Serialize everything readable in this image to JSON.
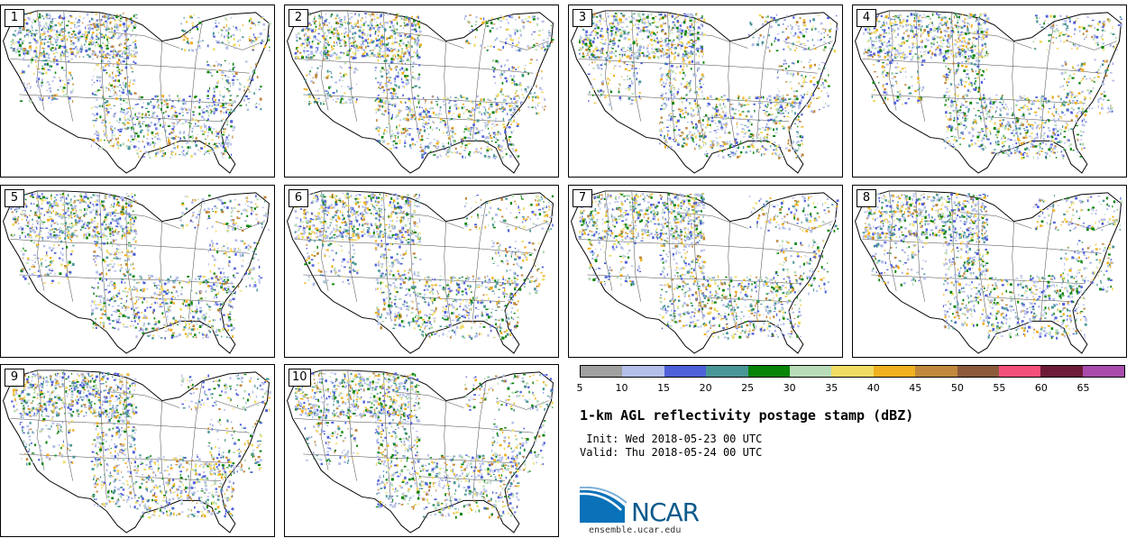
{
  "panels": [
    {
      "label": "1"
    },
    {
      "label": "2"
    },
    {
      "label": "3"
    },
    {
      "label": "4"
    },
    {
      "label": "5"
    },
    {
      "label": "6"
    },
    {
      "label": "7"
    },
    {
      "label": "8"
    },
    {
      "label": "9"
    },
    {
      "label": "10"
    }
  ],
  "colorbar": {
    "colors": [
      "#a0a0a0",
      "#b4bee8",
      "#5060d8",
      "#4a9696",
      "#088408",
      "#b8dcb8",
      "#f0dc64",
      "#f0b020",
      "#c0883c",
      "#8c5a3c",
      "#f4507c",
      "#6c1c38",
      "#a84cac"
    ],
    "ticks": [
      "5",
      "10",
      "15",
      "20",
      "25",
      "30",
      "35",
      "40",
      "45",
      "50",
      "55",
      "60",
      "65"
    ]
  },
  "title": "1-km AGL reflectivity postage stamp (dBZ)",
  "init": " Init: Wed 2018-05-23 00 UTC",
  "valid": "Valid: Thu 2018-05-24 00 UTC",
  "logo": {
    "text": "NCAR",
    "url": "ensemble.ucar.edu"
  }
}
